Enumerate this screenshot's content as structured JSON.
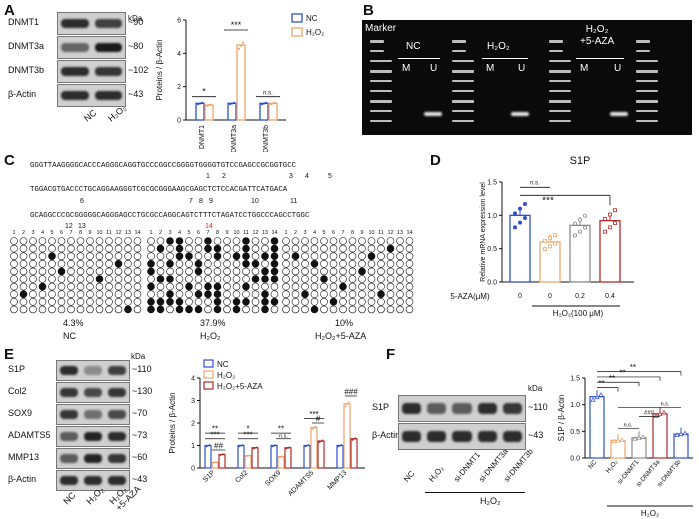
{
  "panels": {
    "A": {
      "label": "A",
      "blot_rows": [
        "DNMT1",
        "DNMT3a",
        "DNMT3b",
        "β-Actin"
      ],
      "kda_header": "kDa",
      "kda": [
        "~90",
        "~80",
        "~102",
        "~43"
      ],
      "lanes": [
        "NC",
        "H₂O₂"
      ]
    },
    "B": {
      "label": "B",
      "marker": "Marker",
      "groups": [
        "NC",
        "H₂O₂",
        "H₂O₂\n+5-AZA"
      ],
      "mu": [
        "M",
        "U"
      ]
    },
    "C": {
      "label": "C",
      "seq_lines": [
        "GGGTTAAGGGGCACCCAGGGCAGGTGCCCGGCCGGGGTGGGGTGTCCGAGCCGCGGTGCC",
        "TGGACGTGACCCTGCAGGAAGGGTCGCGCGGGAAGCGAGCTCTCCACGATTCATGACA",
        "GCAGGCCCGCGGGGGCAGGGAGCCTGCGCCAGGCAGTCTTTCTAGATCCTGGCCCAGCCTGGC"
      ],
      "cpg_numbers_line1": [
        "1",
        "2",
        "3",
        "4",
        "5"
      ],
      "cpg_numbers_line2": [
        "6",
        "7",
        "8",
        "9",
        "10",
        "11"
      ],
      "cpg_numbers_line3": [
        "12",
        "13",
        "14"
      ],
      "lollipop": [
        {
          "pct": "4.3%",
          "name": "NC"
        },
        {
          "pct": "37.9%",
          "name": "H₂O₂"
        },
        {
          "pct": "10%",
          "name": "H₂O₂+5-AZA"
        }
      ],
      "col_numbers": [
        "1",
        "2",
        "3",
        "4",
        "5",
        "6",
        "7",
        "8",
        "9",
        "10",
        "11",
        "12",
        "13",
        "14"
      ]
    },
    "D": {
      "label": "D",
      "sig_main": "***",
      "ns": "n.s.",
      "x_head": "5-AZA(μM)",
      "x_foot": "H₂O₂(100 μM)"
    },
    "E": {
      "label": "E",
      "blot_rows": [
        "S1P",
        "Col2",
        "SOX9",
        "ADAMTS5",
        "MMP13",
        "β-Actin"
      ],
      "kda_header": "kDa",
      "kda": [
        "~110",
        "~130",
        "~70",
        "~73",
        "~60",
        "~43"
      ],
      "lanes": [
        "NC",
        "H₂O₂",
        "H₂O₂\n+5-AZA"
      ]
    },
    "F": {
      "label": "F",
      "blot_rows": [
        "S1P",
        "β-Actin"
      ],
      "kda_header": "kDa",
      "kda": [
        "~110",
        "~43"
      ],
      "lanes": [
        "NC",
        "H₂O₂",
        "si-DNMT1",
        "si-DNMT3a",
        "si-DNMT3b"
      ],
      "bottom": "H₂O₂"
    }
  },
  "chart_data": [
    {
      "type": "bar",
      "panel": "A",
      "title": "",
      "ylabel": "Proteins / β-Actin",
      "ylim": [
        0,
        6
      ],
      "yticks": [
        "0",
        "2",
        "4",
        "6"
      ],
      "categories": [
        "DNMT1",
        "DNMT3a",
        "DNMT3b"
      ],
      "series": [
        {
          "name": "NC",
          "values": [
            1.0,
            1.0,
            1.0
          ],
          "color": "#2f4fd0"
        },
        {
          "name": "H₂O₂",
          "values": [
            0.9,
            4.5,
            1.0
          ],
          "color": "#f0a46a"
        }
      ],
      "annotations": [
        "*",
        "***",
        "n.s."
      ],
      "legend": "top-right"
    },
    {
      "type": "bar",
      "panel": "D",
      "title": "S1P",
      "ylabel": "Relative mRNA expression level",
      "ylim": [
        0,
        1.5
      ],
      "yticks": [
        "0.0",
        "0.5",
        "1.0",
        "1.5"
      ],
      "categories": [
        "0",
        "0",
        "0.2",
        "0.4"
      ],
      "values": [
        1.0,
        0.6,
        0.85,
        0.92
      ],
      "colors": [
        "#2f4fd0",
        "#f0a46a",
        "#8a8a8a",
        "#b22a2a"
      ],
      "legend": "none"
    },
    {
      "type": "bar",
      "panel": "E",
      "title": "",
      "ylabel": "Proteins / β-Actin",
      "ylim": [
        0,
        4
      ],
      "yticks": [
        "0",
        "1",
        "2",
        "3",
        "4"
      ],
      "categories": [
        "S1P",
        "Col2",
        "SOX9",
        "ADAMTS5",
        "MMP13"
      ],
      "series": [
        {
          "name": "NC",
          "values": [
            1.0,
            1.0,
            1.0,
            1.0,
            1.0
          ],
          "color": "#2f4fd0"
        },
        {
          "name": "H₂O₂",
          "values": [
            0.25,
            0.55,
            0.5,
            1.8,
            2.85
          ],
          "color": "#f0a46a"
        },
        {
          "name": "H₂O₂+5-AZA",
          "values": [
            0.6,
            0.9,
            0.9,
            1.2,
            1.3
          ],
          "color": "#b22a2a"
        }
      ],
      "annotations": [
        "**",
        "***",
        "*",
        "***",
        "**",
        "n.s.",
        "***",
        "##",
        "#",
        "###"
      ],
      "legend": "top-left"
    },
    {
      "type": "bar",
      "panel": "F",
      "title": "",
      "ylabel": "S1P / β-Actin",
      "ylim": [
        0,
        1.5
      ],
      "yticks": [
        "0.0",
        "0.5",
        "1.0",
        "1.5"
      ],
      "categories": [
        "NC",
        "H₂O₂",
        "si-DNMT1",
        "si-DNMT3a",
        "si-DNMT3b"
      ],
      "values": [
        1.15,
        0.33,
        0.38,
        0.83,
        0.45
      ],
      "colors": [
        "#2f4fd0",
        "#f0a46a",
        "#8a8a8a",
        "#b22a2a",
        "#2f4fd0"
      ],
      "annotations": [
        "**",
        "**",
        "**",
        "**",
        "*",
        "n.s.",
        "n.s.",
        "###"
      ],
      "group_label": "H₂O₂"
    }
  ]
}
